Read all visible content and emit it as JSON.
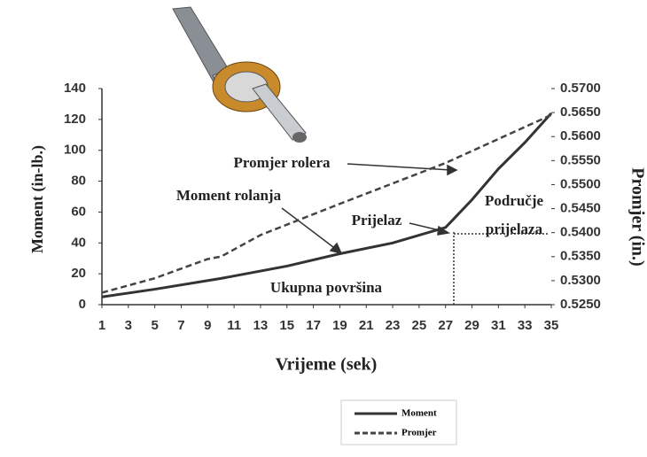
{
  "chart_data": {
    "type": "line",
    "x_label": "Vrijeme (sek)",
    "y_label": "Moment (in-lb.)",
    "y2_label": "Promjer (in.)",
    "xlim": [
      1,
      35
    ],
    "xticks": [
      1,
      3,
      5,
      7,
      9,
      11,
      13,
      15,
      17,
      19,
      21,
      23,
      25,
      27,
      29,
      31,
      33,
      35
    ],
    "ylim": [
      0,
      140
    ],
    "yticks": [
      0,
      20,
      40,
      60,
      80,
      100,
      120,
      140
    ],
    "y2lim": [
      0.525,
      0.57
    ],
    "y2ticks": [
      {
        "value": 0.525,
        "label": "0.5250"
      },
      {
        "value": 0.53,
        "label": "0.5300"
      },
      {
        "value": 0.535,
        "label": "0.5350"
      },
      {
        "value": 0.54,
        "label": "0.5400"
      },
      {
        "value": 0.545,
        "label": "0.5450"
      },
      {
        "value": 0.55,
        "label": "0.5500"
      },
      {
        "value": 0.555,
        "label": "0.5550"
      },
      {
        "value": 0.56,
        "label": "0.5600"
      },
      {
        "value": 0.565,
        "label": "0.5650"
      },
      {
        "value": 0.57,
        "label": "0.5700"
      }
    ],
    "series": [
      {
        "name": "Moment",
        "color": "#333333",
        "dash": false,
        "x": [
          1,
          5,
          10,
          15,
          19,
          23,
          27,
          29,
          31,
          33,
          35
        ],
        "values": [
          5,
          10,
          17,
          25,
          33,
          40,
          50,
          68,
          88,
          105,
          124
        ]
      },
      {
        "name": "Promjer",
        "color": "#444444",
        "dash": true,
        "axis": "y2",
        "x": [
          1,
          5,
          9,
          10,
          13,
          19,
          27,
          35
        ],
        "values": [
          0.5275,
          0.5305,
          0.5345,
          0.535,
          0.5395,
          0.546,
          0.5545,
          0.5645
        ]
      }
    ],
    "annotations": [
      "Promjer rolera",
      "Moment rolanja",
      "Prijelaz",
      "Područje",
      "prijelaza",
      "Ukupna površina"
    ]
  }
}
